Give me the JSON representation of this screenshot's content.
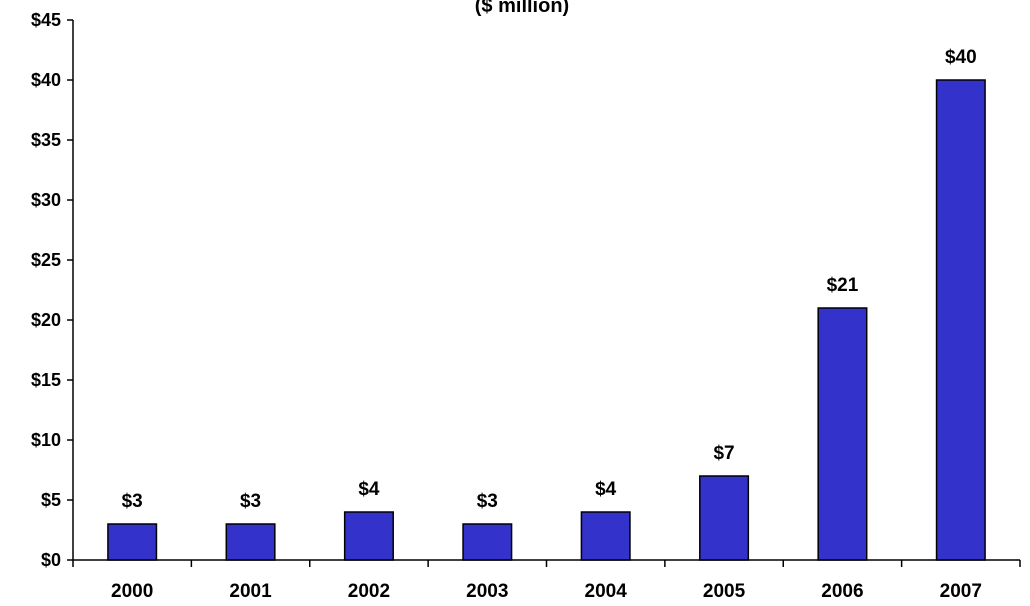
{
  "chart_data": {
    "type": "bar",
    "subtitle": "($ million)",
    "categories": [
      "2000",
      "2001",
      "2002",
      "2003",
      "2004",
      "2005",
      "2006",
      "2007"
    ],
    "values": [
      3,
      3,
      4,
      3,
      4,
      7,
      21,
      40
    ],
    "data_labels": [
      "$3",
      "$3",
      "$4",
      "$3",
      "$4",
      "$7",
      "$21",
      "$40"
    ],
    "ylim": [
      0,
      45
    ],
    "y_ticks": [
      0,
      5,
      10,
      15,
      20,
      25,
      30,
      35,
      40,
      45
    ],
    "y_tick_labels": [
      "$0",
      "$5",
      "$10",
      "$15",
      "$20",
      "$25",
      "$30",
      "$35",
      "$40",
      "$45"
    ],
    "xlabel": "",
    "ylabel": "",
    "grid": false,
    "legend": "none",
    "colors": {
      "bar": "#3333CC",
      "bar_edge": "#000000",
      "axis": "#000000",
      "text": "#000000"
    }
  }
}
